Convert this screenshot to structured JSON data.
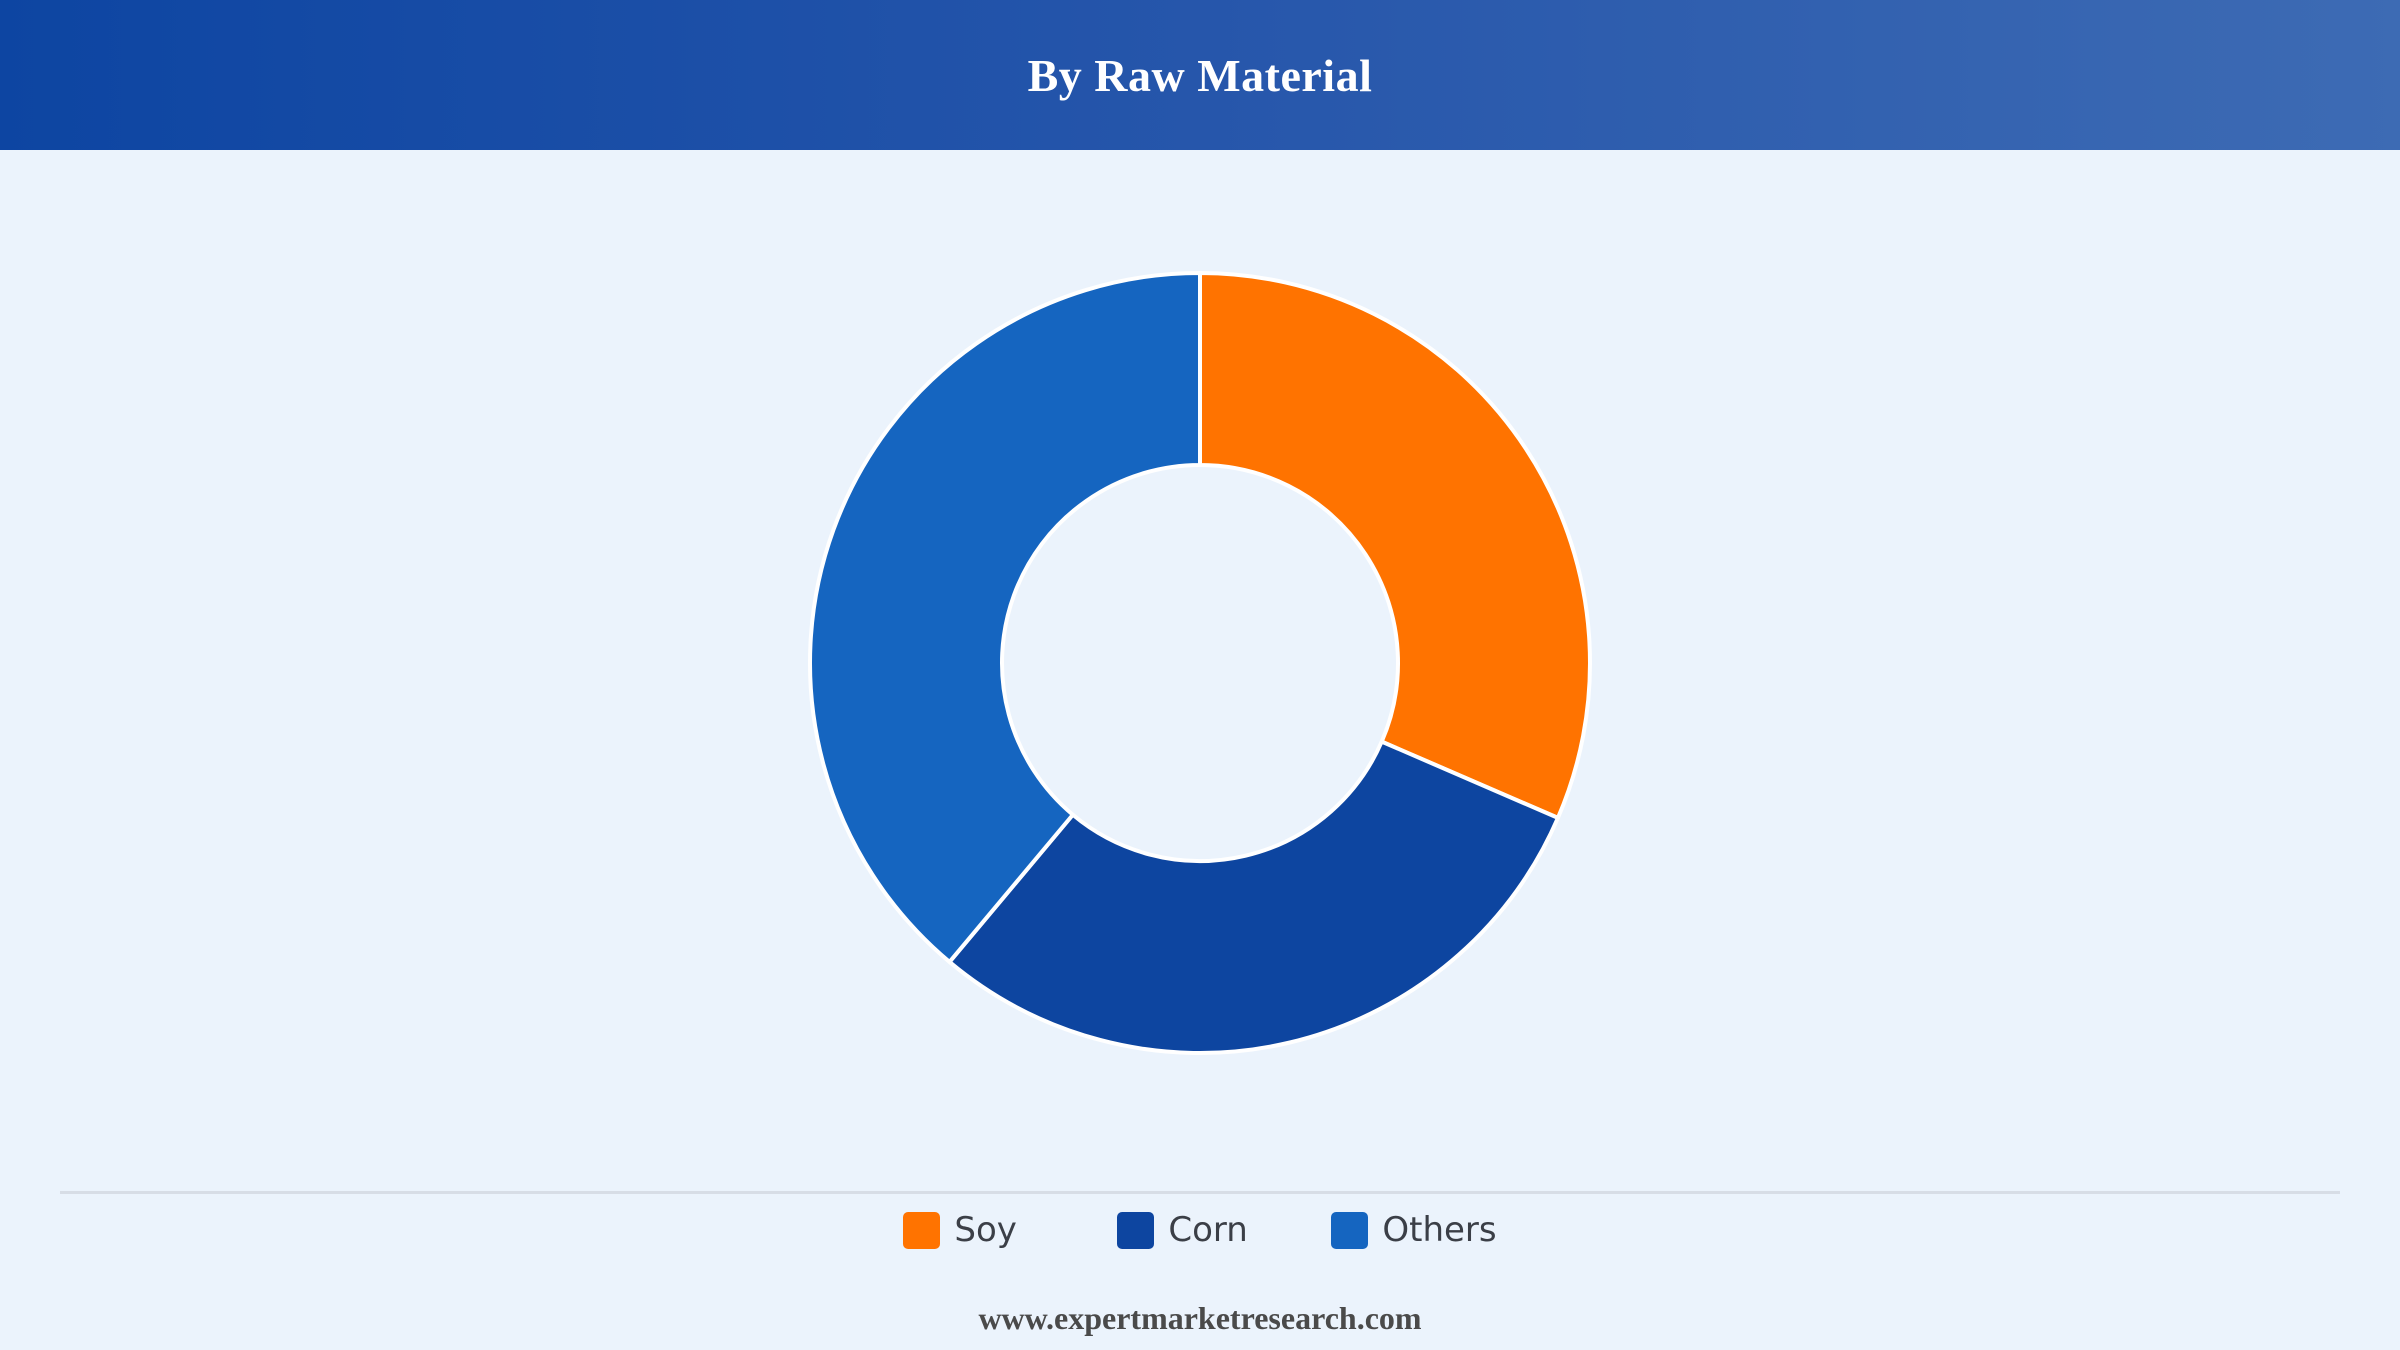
{
  "header": {
    "title": "By Raw Material"
  },
  "chart_data": {
    "type": "pie",
    "variant": "donut",
    "title": "By Raw Material",
    "categories": [
      "Soy",
      "Corn",
      "Others"
    ],
    "values": [
      31.5,
      29.6,
      38.9
    ],
    "unit": "%",
    "colors": [
      "#ff7300",
      "#0d45a0",
      "#1565c0"
    ],
    "legend_position": "bottom"
  },
  "legend": {
    "items": [
      {
        "label": "Soy",
        "color": "#ff7300"
      },
      {
        "label": "Corn",
        "color": "#0d45a0"
      },
      {
        "label": "Others",
        "color": "#1565c0"
      }
    ]
  },
  "footer": {
    "source": "www.expertmarketresearch.com"
  }
}
